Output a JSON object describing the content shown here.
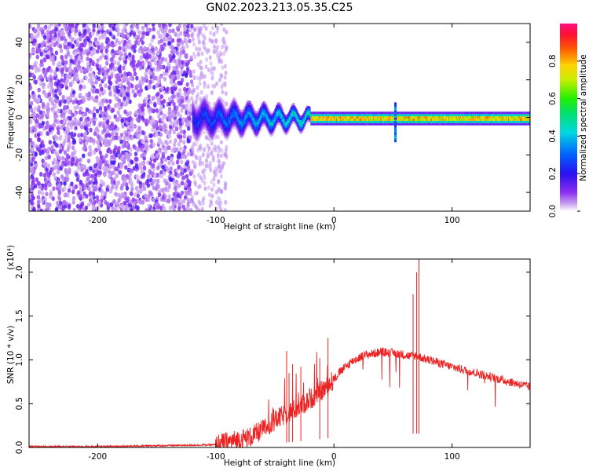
{
  "title": "GN02.2023.213.05.35.C25",
  "colors": {
    "signal_line": "#ee2222",
    "background": "#ffffff",
    "colormap": [
      "#ffffff",
      "#e6c8f5",
      "#b87ae8",
      "#7a1ef0",
      "#2a10f0",
      "#0060ff",
      "#00d8e0",
      "#00e070",
      "#20f000",
      "#c8ee00",
      "#ffd000",
      "#ff6000",
      "#ff1030",
      "#ff1080"
    ]
  },
  "chart_data": [
    {
      "type": "heatmap",
      "xlabel": "Height of straight line (km)",
      "ylabel": "Frequency (Hz)",
      "xlim": [
        -258,
        166
      ],
      "ylim": [
        -50,
        50
      ],
      "xticks": [
        -200,
        -100,
        0,
        100
      ],
      "yticks": [
        -40,
        -20,
        0,
        20,
        40
      ],
      "colorbar": {
        "label": "Normalized spectral amplitude",
        "range": [
          0.0,
          1.0
        ],
        "ticks": [
          "0.0",
          "0.2",
          "0.4",
          "0.6",
          "0.8"
        ]
      },
      "regions": [
        {
          "x": [
            -258,
            -120
          ],
          "description_level": 0.15
        },
        {
          "x": [
            -120,
            -20
          ],
          "level": 0.35
        },
        {
          "x": [
            -20,
            166
          ],
          "level": 0.95
        }
      ]
    },
    {
      "type": "line",
      "xlabel": "Height of straight line (km)",
      "ylabel": "SNR (10 * v/v)",
      "y_exponent": "(x10⁴)",
      "xlim": [
        -258,
        166
      ],
      "ylim": [
        0,
        2.15
      ],
      "xticks": [
        -200,
        -100,
        0,
        100
      ],
      "yticks": [
        "0.0",
        "0.5",
        "1.0",
        "1.5",
        "2.0"
      ],
      "series": [
        {
          "x": [
            -258,
            -200,
            -150,
            -100,
            -90,
            -70,
            -55,
            -45,
            -35,
            -25,
            -15,
            -5,
            5,
            15,
            25,
            40,
            55,
            65,
            70,
            75,
            85,
            100,
            120,
            140,
            166
          ],
          "y": [
            0.01,
            0.01,
            0.02,
            0.03,
            0.06,
            0.12,
            0.25,
            0.35,
            0.42,
            0.5,
            0.6,
            0.7,
            0.86,
            0.98,
            1.05,
            1.09,
            1.07,
            1.04,
            1.05,
            1.02,
            0.98,
            0.92,
            0.85,
            0.78,
            0.69
          ]
        }
      ],
      "spikes": [
        {
          "x": -40,
          "y": 1.1
        },
        {
          "x": -38,
          "y": 0.85
        },
        {
          "x": -35,
          "y": 0.95
        },
        {
          "x": -28,
          "y": 0.92
        },
        {
          "x": -12,
          "y": 1.02
        },
        {
          "x": -5,
          "y": 1.25
        },
        {
          "x": 67,
          "y": 1.75
        },
        {
          "x": 70,
          "y": 2.0
        },
        {
          "x": 72,
          "y": 2.15
        }
      ]
    }
  ]
}
